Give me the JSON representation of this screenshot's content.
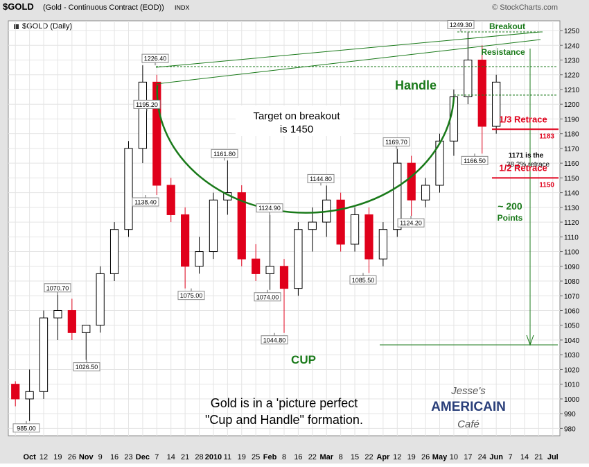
{
  "chart_data": {
    "type": "candlestick",
    "symbol": "$GOLD",
    "title": "(Gold - Continuous Contract (EOD))",
    "exchange": "INDX",
    "credit": "© StockCharts.com",
    "subtitle": "$GOLD (Daily)",
    "categories": [
      null,
      "Oct",
      "12",
      "19",
      "26",
      "Nov",
      "9",
      "16",
      "23",
      "Dec",
      "7",
      "14",
      "21",
      "28",
      "2010",
      "11",
      "19",
      "25",
      "Feb",
      "8",
      "16",
      "22",
      "Mar",
      "8",
      "15",
      "22",
      "Apr",
      "12",
      "19",
      "26",
      "May",
      "10",
      "17",
      "24",
      "Jun",
      "7",
      "14",
      "21",
      "Jul"
    ],
    "open": [
      1010,
      1000,
      1005,
      1055,
      1060,
      1045,
      1050,
      1085,
      1115,
      1170,
      1215,
      1145,
      1125,
      1090,
      1100,
      1135,
      1140,
      1095,
      1085,
      1090,
      1075,
      1115,
      1120,
      1135,
      1105,
      1125,
      1095,
      1115,
      1160,
      1135,
      1145,
      1175,
      1205,
      1230,
      1185,
      null,
      null,
      null,
      null
    ],
    "high": [
      1012,
      1020,
      1060,
      1070.7,
      1068,
      1048,
      1090,
      1120,
      1175,
      1226.4,
      1220,
      1150,
      1130,
      1110,
      1140,
      1161.8,
      1145,
      1105,
      1124.9,
      1095,
      1120,
      1130,
      1144.8,
      1140,
      1130,
      1130,
      1120,
      1169.7,
      1165,
      1150,
      1180,
      1210,
      1249.3,
      1240,
      1220,
      null,
      null,
      null,
      null
    ],
    "low": [
      995,
      985,
      1000,
      1040,
      1040,
      1026.5,
      1045,
      1080,
      1110,
      1160,
      1138.4,
      1120,
      1075,
      1085,
      1095,
      1125,
      1090,
      1080,
      1074,
      1044.8,
      1070,
      1100,
      1110,
      1100,
      1100,
      1085.5,
      1090,
      1110,
      1124.2,
      1130,
      1140,
      1165,
      1200,
      1166.5,
      1180,
      null,
      null,
      null,
      null
    ],
    "close": [
      1000,
      1005,
      1055,
      1060,
      1045,
      1050,
      1085,
      1115,
      1170,
      1215,
      1145,
      1125,
      1090,
      1100,
      1135,
      1140,
      1095,
      1085,
      1090,
      1075,
      1115,
      1120,
      1135,
      1105,
      1125,
      1095,
      1115,
      1160,
      1135,
      1145,
      1175,
      1205,
      1230,
      1185,
      1215,
      null,
      null,
      null,
      null
    ],
    "up_color": "#ffffff",
    "down_color": "#e0001b",
    "ylim": [
      975,
      1256.6
    ],
    "yticks": [
      980,
      990,
      1000,
      1010,
      1020,
      1030,
      1040,
      1050,
      1060,
      1070,
      1080,
      1090,
      1100,
      1110,
      1120,
      1130,
      1140,
      1150,
      1160,
      1170,
      1180,
      1190,
      1200,
      1210,
      1220,
      1230,
      1240,
      1250
    ],
    "grid": true,
    "price_labels": [
      {
        "value": 1226.4,
        "label": "1226.40"
      },
      {
        "value": 1195.2,
        "label": "1195.20"
      },
      {
        "value": 1138.4,
        "label": "1138.40"
      },
      {
        "value": 1070.7,
        "label": "1070.70"
      },
      {
        "value": 1026.5,
        "label": "1026.50"
      },
      {
        "value": 985,
        "label": "985.00"
      },
      {
        "value": 1161.8,
        "label": "1161.80"
      },
      {
        "value": 1075,
        "label": "1075.00"
      },
      {
        "value": 1124.9,
        "label": "1124.90"
      },
      {
        "value": 1074,
        "label": "1074.00"
      },
      {
        "value": 1044.8,
        "label": "1044.80"
      },
      {
        "value": 1144.8,
        "label": "1144.80"
      },
      {
        "value": 1085.5,
        "label": "1085.50"
      },
      {
        "value": 1169.7,
        "label": "1169.70"
      },
      {
        "value": 1124.2,
        "label": "1124.20"
      },
      {
        "value": 1249.3,
        "label": "1249.30"
      },
      {
        "value": 1166.5,
        "label": "1166.50"
      }
    ],
    "retrace_lines": [
      {
        "name": "1/3 Retrace",
        "value": 1183,
        "label": "1183"
      },
      {
        "name": "1/2 Retrace",
        "value": 1150,
        "label": "1150"
      }
    ],
    "annotations": {
      "target": [
        "Target on breakout",
        "is 1450"
      ],
      "handle": "Handle",
      "cup": "CUP",
      "breakout": "Breakout",
      "resistance": "Resistance",
      "retrace_note": [
        "1171 is the",
        "38.2% retrace"
      ],
      "points": [
        "~ 200",
        "Points"
      ],
      "caption": [
        "Gold is in a 'picture perfect",
        "\"Cup and Handle\" formation."
      ],
      "logo": [
        "Jesse's",
        "AMERICAIN",
        "Café"
      ]
    }
  }
}
